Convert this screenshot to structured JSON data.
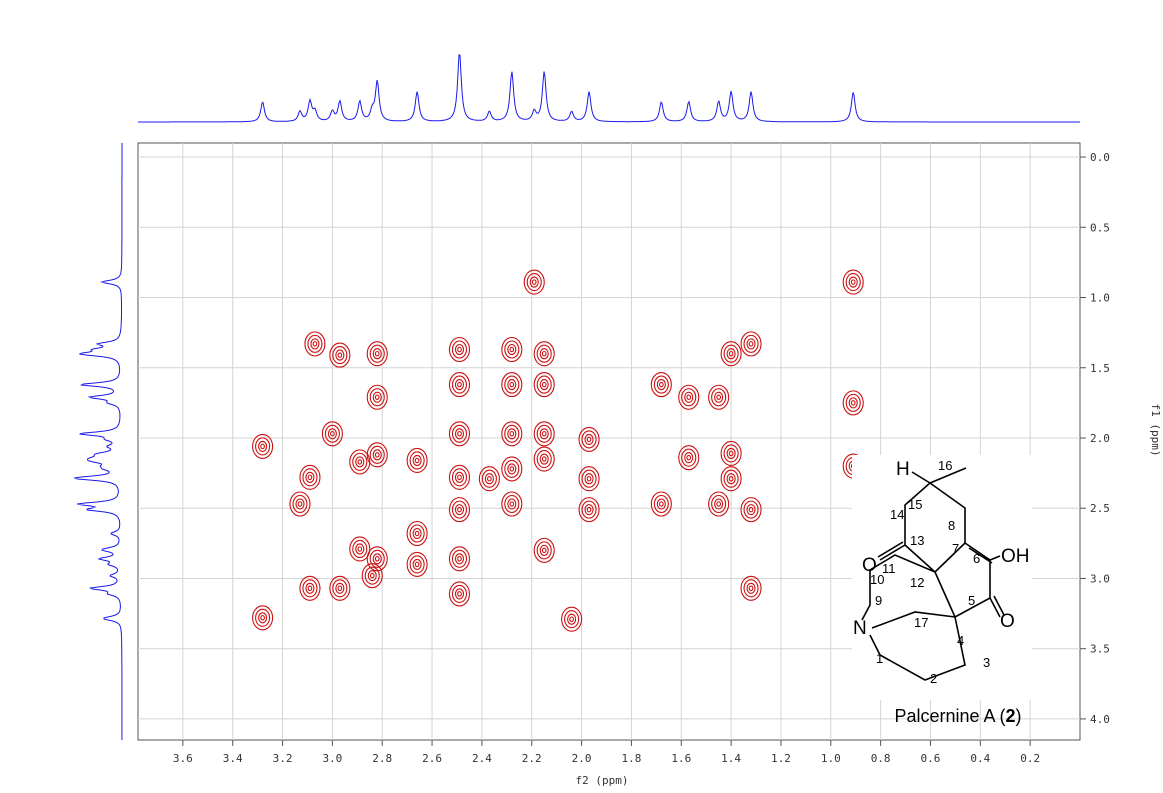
{
  "chart_data": {
    "type": "contour",
    "xlabel": "f2 (ppm)",
    "ylabel": "f1 (ppm)",
    "xlim": [
      3.78,
      0.0
    ],
    "ylim": [
      -0.1,
      4.15
    ],
    "xticks": [
      3.6,
      3.4,
      3.2,
      {
        "value": 3,
        "label": "3.0"
      },
      2.8,
      2.6,
      2.4,
      2.2,
      {
        "value": 2,
        "label": "2.0"
      },
      1.8,
      1.6,
      1.4,
      1.2,
      {
        "value": 1,
        "label": "1.0"
      },
      0.8,
      0.6,
      0.4,
      0.2
    ],
    "yticks": [
      {
        "value": 0,
        "label": "0.0"
      },
      0.5,
      {
        "value": 1,
        "label": "1.0"
      },
      1.5,
      {
        "value": 2,
        "label": "2.0"
      },
      2.5,
      {
        "value": 3,
        "label": "3.0"
      },
      3.5,
      {
        "value": 4,
        "label": "4.0"
      }
    ],
    "grid": true,
    "color": "#cc1111",
    "projection_color": "#1a1aee",
    "x": [
      3.28,
      3.28,
      3.07,
      3.09,
      3.13,
      3.09,
      2.97,
      2.89,
      2.89,
      2.82,
      2.82,
      2.84,
      2.97,
      2.82,
      2.82,
      3.0,
      2.66,
      2.66,
      2.66,
      2.49,
      2.49,
      2.49,
      2.49,
      2.49,
      2.49,
      2.49,
      2.37,
      2.28,
      2.28,
      2.28,
      2.28,
      2.28,
      2.19,
      2.15,
      2.15,
      2.15,
      2.15,
      2.15,
      2.04,
      1.97,
      1.97,
      1.97,
      1.68,
      1.57,
      1.57,
      1.68,
      1.45,
      1.4,
      1.4,
      1.4,
      1.45,
      1.32,
      1.32,
      1.32,
      0.91,
      0.91,
      0.91
    ],
    "y": [
      3.28,
      2.06,
      1.33,
      2.28,
      2.47,
      3.07,
      3.07,
      2.79,
      2.17,
      2.12,
      2.86,
      2.98,
      1.41,
      1.4,
      1.71,
      1.97,
      2.16,
      2.68,
      2.9,
      1.37,
      1.62,
      1.97,
      2.28,
      2.51,
      2.86,
      3.11,
      2.29,
      1.37,
      1.62,
      1.97,
      2.22,
      2.47,
      0.89,
      1.4,
      1.62,
      1.97,
      2.15,
      2.8,
      3.29,
      2.01,
      2.29,
      2.51,
      1.62,
      1.71,
      2.14,
      2.47,
      1.71,
      1.4,
      2.11,
      2.29,
      2.47,
      1.33,
      2.51,
      3.07,
      0.89,
      1.75,
      2.2
    ]
  },
  "structure": {
    "atoms": [
      "H",
      "16",
      "15",
      "14",
      "8",
      "O",
      "13",
      "7",
      "6",
      "OH",
      "11",
      "10",
      "12",
      "5",
      "O",
      "9",
      "17",
      "N",
      "4",
      "1",
      "3",
      "2"
    ],
    "caption": [
      "Palcernine A (",
      "2",
      ")"
    ]
  }
}
